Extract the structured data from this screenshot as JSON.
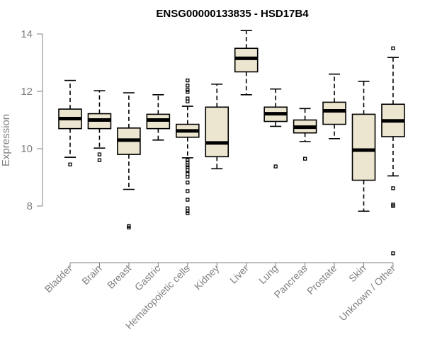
{
  "chart_data": {
    "type": "box",
    "title": "ENSG00000133835 - HSD17B4",
    "xlabel": "",
    "ylabel": "Expression",
    "ylim": [
      6,
      14.2
    ],
    "yticks": [
      8,
      10,
      12,
      14
    ],
    "categories": [
      "Bladder",
      "Brain",
      "Breast",
      "Gastric",
      "Hematopoietic cells",
      "Kidney",
      "Liver",
      "Lung",
      "Pancreas",
      "Prostate",
      "Skin",
      "Unknown / Other"
    ],
    "boxes": [
      {
        "category": "Bladder",
        "whisker_low": 9.7,
        "q1": 10.7,
        "median": 11.05,
        "q3": 11.38,
        "whisker_high": 12.38,
        "outliers": [
          9.45
        ]
      },
      {
        "category": "Brain",
        "whisker_low": 10.02,
        "q1": 10.7,
        "median": 11.0,
        "q3": 11.22,
        "whisker_high": 12.02,
        "outliers": [
          9.8,
          9.6
        ]
      },
      {
        "category": "Breast",
        "whisker_low": 8.58,
        "q1": 9.8,
        "median": 10.3,
        "q3": 10.72,
        "whisker_high": 11.95,
        "outliers": [
          7.3,
          7.25
        ]
      },
      {
        "category": "Gastric",
        "whisker_low": 10.3,
        "q1": 10.7,
        "median": 11.0,
        "q3": 11.2,
        "whisker_high": 11.88,
        "outliers": []
      },
      {
        "category": "Hematopoietic cells",
        "whisker_low": 9.68,
        "q1": 10.4,
        "median": 10.62,
        "q3": 10.85,
        "whisker_high": 11.48,
        "outliers": [
          12.38,
          12.2,
          12.05,
          11.98,
          11.75,
          11.65,
          9.6,
          9.52,
          9.42,
          9.35,
          9.25,
          9.12,
          9.02,
          8.82,
          8.52,
          8.22,
          7.92,
          7.82,
          7.75
        ]
      },
      {
        "category": "Kidney",
        "whisker_low": 9.3,
        "q1": 9.72,
        "median": 10.2,
        "q3": 11.45,
        "whisker_high": 12.25,
        "outliers": []
      },
      {
        "category": "Liver",
        "whisker_low": 11.88,
        "q1": 12.68,
        "median": 13.15,
        "q3": 13.5,
        "whisker_high": 14.12,
        "outliers": []
      },
      {
        "category": "Lung",
        "whisker_low": 10.78,
        "q1": 10.95,
        "median": 11.22,
        "q3": 11.45,
        "whisker_high": 12.08,
        "outliers": [
          9.38
        ]
      },
      {
        "category": "Pancreas",
        "whisker_low": 10.25,
        "q1": 10.55,
        "median": 10.75,
        "q3": 11.0,
        "whisker_high": 11.4,
        "outliers": [
          9.65
        ]
      },
      {
        "category": "Prostate",
        "whisker_low": 10.35,
        "q1": 10.85,
        "median": 11.32,
        "q3": 11.62,
        "whisker_high": 12.6,
        "outliers": []
      },
      {
        "category": "Skin",
        "whisker_low": 7.82,
        "q1": 8.9,
        "median": 9.95,
        "q3": 11.2,
        "whisker_high": 12.35,
        "outliers": []
      },
      {
        "category": "Unknown / Other",
        "whisker_low": 9.05,
        "q1": 10.42,
        "median": 10.97,
        "q3": 11.55,
        "whisker_high": 13.18,
        "outliers": [
          13.5,
          8.62,
          8.05,
          8.0,
          6.35
        ]
      }
    ],
    "box_fill": "#ece5cf",
    "axis_color": "#808080",
    "grid": false,
    "legend": "none"
  }
}
